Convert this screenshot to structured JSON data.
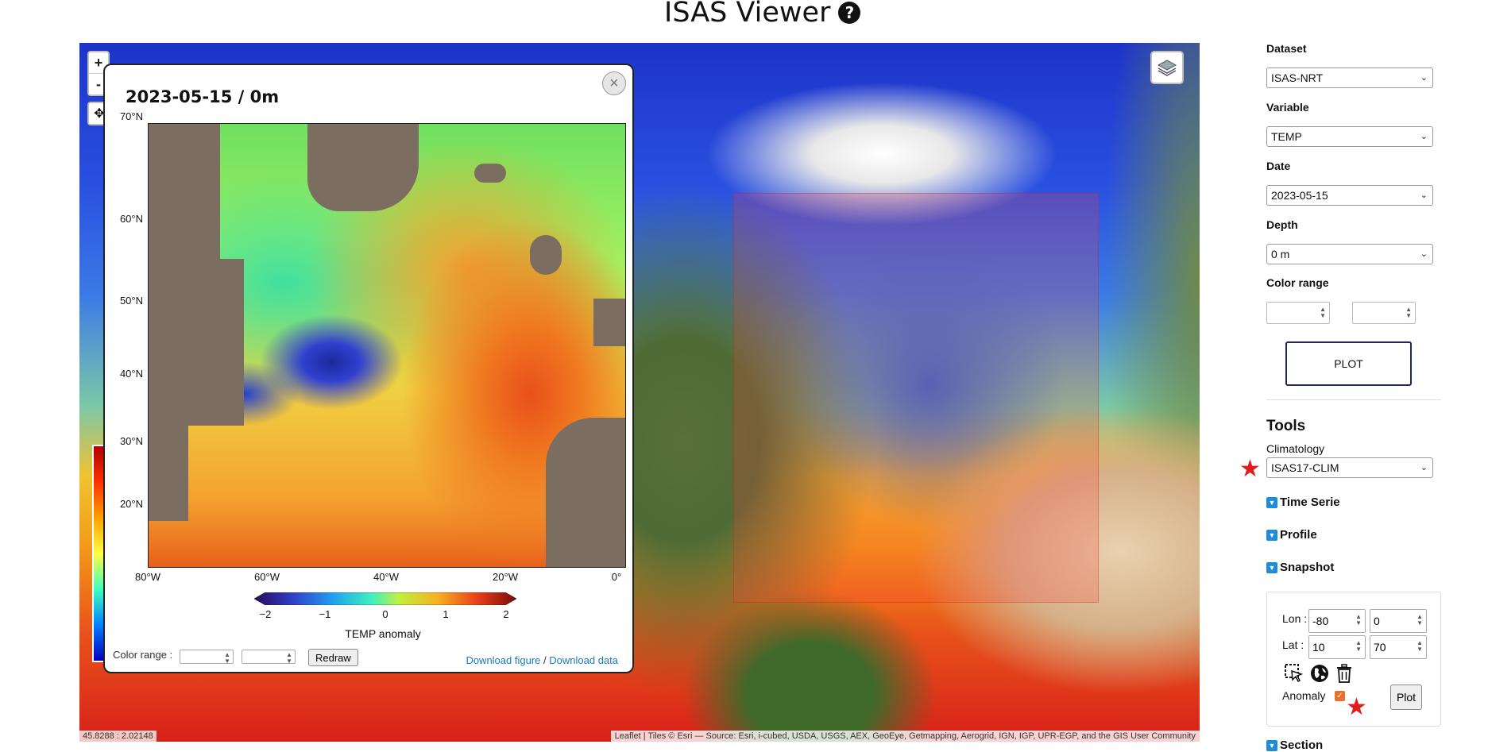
{
  "header": {
    "title": "ISAS Viewer",
    "help_icon": "?"
  },
  "map": {
    "zoom_in": "+",
    "zoom_out": "-",
    "coordinates": "45.8288 : 2.02148",
    "attribution": "Leaflet | Tiles © Esri — Source: Esri, i-cubed, USDA, USGS, AEX, GeoEye, Getmapping, Aerogrid, IGN, IGP, UPR-EGP, and the GIS User Community"
  },
  "popup": {
    "title": "2023-05-15 / 0m",
    "close": "×",
    "y_ticks": [
      "70°N",
      "60°N",
      "50°N",
      "40°N",
      "30°N",
      "20°N"
    ],
    "x_ticks": [
      "80°W",
      "60°W",
      "40°W",
      "20°W",
      "0°"
    ],
    "colorbar_ticks": [
      "−2",
      "−1",
      "0",
      "1",
      "2"
    ],
    "colorbar_label": "TEMP anomaly",
    "color_range_label": "Color range :",
    "redraw_label": "Redraw",
    "download_figure": "Download figure",
    "separator": "/",
    "download_data": "Download data"
  },
  "sidebar": {
    "dataset_label": "Dataset",
    "dataset_value": "ISAS-NRT",
    "variable_label": "Variable",
    "variable_value": "TEMP",
    "date_label": "Date",
    "date_value": "2023-05-15",
    "depth_label": "Depth",
    "depth_value": "0 m",
    "color_range_label": "Color range",
    "plot_label": "PLOT",
    "tools_title": "Tools",
    "climatology_label": "Climatology",
    "climatology_value": "ISAS17-CLIM",
    "sections": [
      "Time Serie",
      "Profile",
      "Snapshot",
      "Section"
    ],
    "snapshot": {
      "lon_label": "Lon :",
      "lon_min": "-80",
      "lon_max": "0",
      "lat_label": "Lat :",
      "lat_min": "10",
      "lat_max": "70",
      "anomaly_label": "Anomaly",
      "anomaly_checked": true,
      "plot_label": "Plot"
    }
  },
  "colors": {
    "accent": "#1e2a55",
    "star": "#e41b1b",
    "link": "#1a7bc0",
    "checkbox": "#e8702a"
  }
}
